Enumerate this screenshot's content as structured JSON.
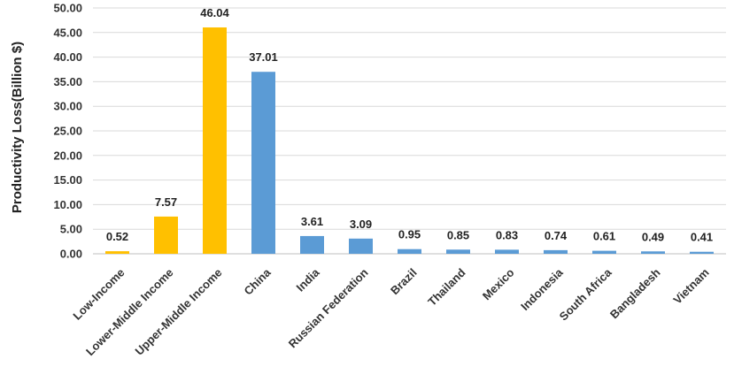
{
  "chart_data": {
    "type": "bar",
    "title": "",
    "xlabel": "",
    "ylabel": "Productivity Loss(Billion $)",
    "ylim": [
      0,
      50
    ],
    "yticks": [
      "0.00",
      "5.00",
      "10.00",
      "15.00",
      "20.00",
      "25.00",
      "30.00",
      "35.00",
      "40.00",
      "45.00",
      "50.00"
    ],
    "grid": true,
    "legend": "none",
    "categories": [
      "Low-Income",
      "Lower-Middle Income",
      "Upper-Middle Income",
      "China",
      "India",
      "Russian Federation",
      "Brazil",
      "Thailand",
      "Mexico",
      "Indonesia",
      "South Africa",
      "Bangladesh",
      "Vietnam"
    ],
    "values": [
      0.52,
      7.57,
      46.04,
      37.01,
      3.61,
      3.09,
      0.95,
      0.85,
      0.83,
      0.74,
      0.61,
      0.49,
      0.41
    ],
    "data_labels": [
      "0.52",
      "7.57",
      "46.04",
      "37.01",
      "3.61",
      "3.09",
      "0.95",
      "0.85",
      "0.83",
      "0.74",
      "0.61",
      "0.49",
      "0.41"
    ],
    "bar_colors": [
      "#FFC000",
      "#FFC000",
      "#FFC000",
      "#5B9BD5",
      "#5B9BD5",
      "#5B9BD5",
      "#5B9BD5",
      "#5B9BD5",
      "#5B9BD5",
      "#5B9BD5",
      "#5B9BD5",
      "#5B9BD5",
      "#5B9BD5"
    ]
  }
}
